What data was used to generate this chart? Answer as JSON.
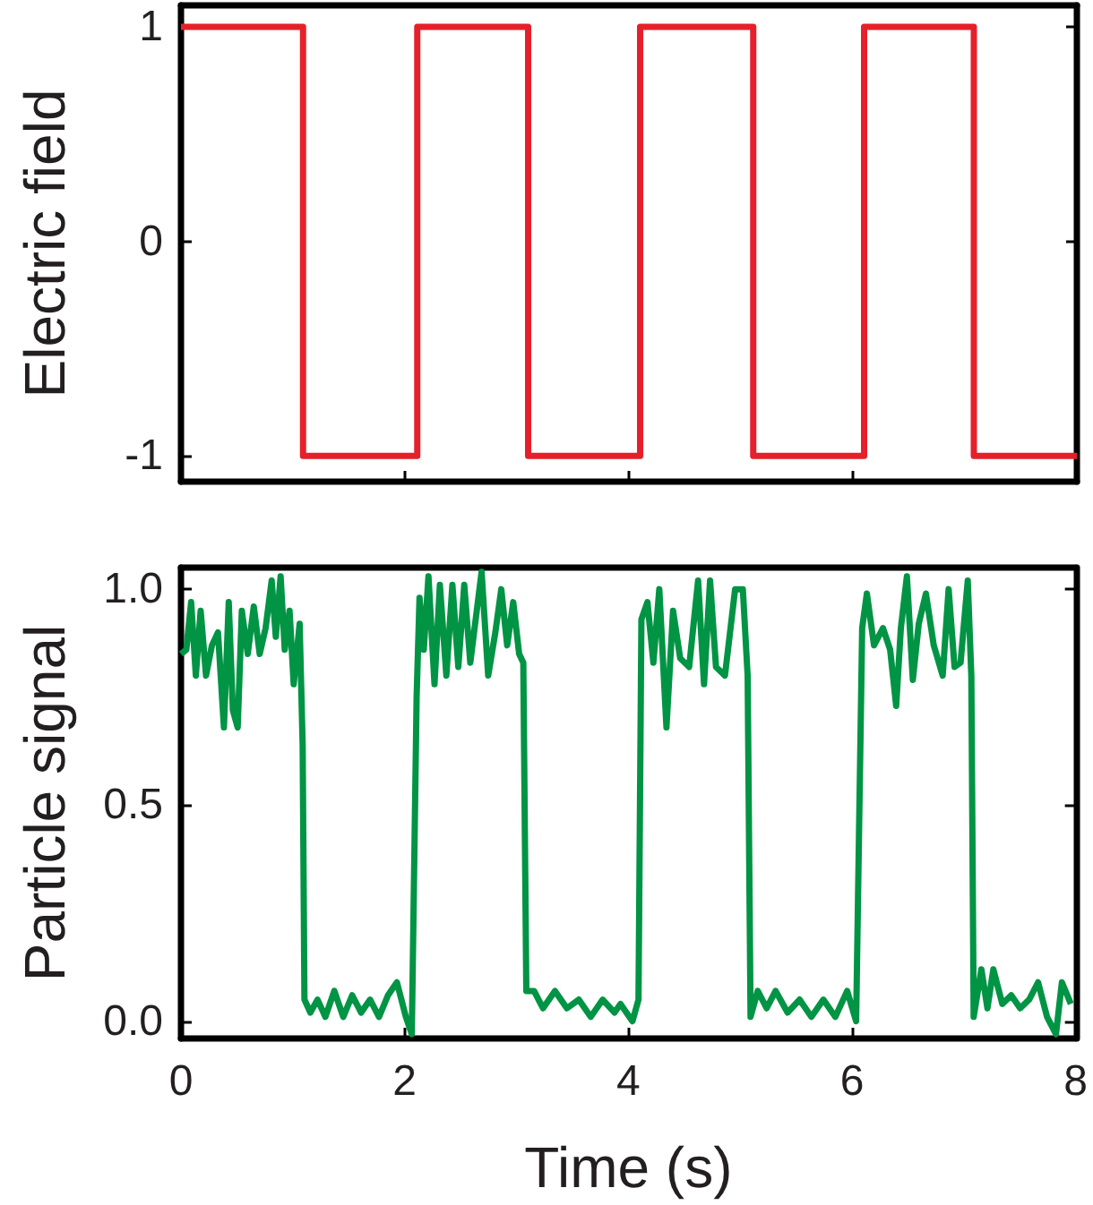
{
  "chart_data": [
    {
      "type": "step",
      "ylabel": "Electric field",
      "color": "#e5202a",
      "marker": "none",
      "tick_labels": "y",
      "x": [
        0,
        1.09,
        2.11,
        3.1,
        4.1,
        5.11,
        6.1,
        7.08,
        8
      ],
      "values": [
        1,
        -1,
        1,
        -1,
        1,
        -1,
        1,
        -1,
        -1
      ],
      "xlim": [
        0,
        8
      ],
      "xticks": [
        0,
        2,
        4,
        6,
        8
      ],
      "ylim": [
        -1.12,
        1.1
      ],
      "yticks": [
        -1,
        0,
        1
      ]
    },
    {
      "type": "line",
      "ylabel": "Particle signal",
      "xlabel": "Time (s)",
      "color": "#009444",
      "marker": "none",
      "x": [
        0,
        0.048,
        0.091,
        0.133,
        0.176,
        0.224,
        0.277,
        0.331,
        0.384,
        0.427,
        0.464,
        0.507,
        0.544,
        0.597,
        0.651,
        0.704,
        0.757,
        0.811,
        0.848,
        0.891,
        0.928,
        0.971,
        1.008,
        1.061,
        1.088,
        1.104,
        1.157,
        1.221,
        1.291,
        1.371,
        1.451,
        1.531,
        1.611,
        1.691,
        1.771,
        1.851,
        1.931,
        2.011,
        2.064,
        2.107,
        2.133,
        2.171,
        2.213,
        2.267,
        2.315,
        2.373,
        2.427,
        2.48,
        2.533,
        2.587,
        2.688,
        2.747,
        2.811,
        2.864,
        2.917,
        2.971,
        3.024,
        3.061,
        3.088,
        3.157,
        3.237,
        3.344,
        3.451,
        3.557,
        3.664,
        3.771,
        3.877,
        3.93,
        4.037,
        4.091,
        4.117,
        4.171,
        4.224,
        4.277,
        4.341,
        4.4,
        4.464,
        4.544,
        4.624,
        4.677,
        4.731,
        4.784,
        4.864,
        4.955,
        5.024,
        5.067,
        5.093,
        5.157,
        5.237,
        5.317,
        5.424,
        5.531,
        5.637,
        5.744,
        5.851,
        5.957,
        6.037,
        6.091,
        6.133,
        6.197,
        6.277,
        6.341,
        6.395,
        6.437,
        6.491,
        6.544,
        6.597,
        6.661,
        6.731,
        6.811,
        6.864,
        6.917,
        6.971,
        7.035,
        7.067,
        7.088,
        7.157,
        7.211,
        7.264,
        7.344,
        7.424,
        7.504,
        7.584,
        7.664,
        7.744,
        7.824,
        7.877,
        7.957
      ],
      "values": [
        0.85,
        0.86,
        0.97,
        0.8,
        0.95,
        0.8,
        0.87,
        0.9,
        0.68,
        0.97,
        0.72,
        0.68,
        0.95,
        0.85,
        0.96,
        0.85,
        0.91,
        1.02,
        0.89,
        1.03,
        0.86,
        0.95,
        0.78,
        0.92,
        0.64,
        0.05,
        0.02,
        0.05,
        0.01,
        0.07,
        0.01,
        0.06,
        0.02,
        0.05,
        0.01,
        0.06,
        0.09,
        0.01,
        -0.03,
        0.75,
        0.98,
        0.86,
        1.03,
        0.78,
        1.01,
        0.8,
        1.01,
        0.82,
        1.01,
        0.83,
        1.04,
        0.8,
        0.9,
        1.0,
        0.87,
        0.97,
        0.85,
        0.83,
        0.07,
        0.07,
        0.03,
        0.07,
        0.03,
        0.05,
        0.01,
        0.05,
        0.02,
        0.04,
        0.0,
        0.05,
        0.93,
        0.97,
        0.83,
        1.0,
        0.68,
        0.95,
        0.84,
        0.82,
        1.02,
        0.78,
        1.02,
        0.82,
        0.8,
        1.0,
        1.0,
        0.8,
        0.01,
        0.07,
        0.03,
        0.07,
        0.02,
        0.05,
        0.01,
        0.05,
        0.01,
        0.07,
        0.0,
        0.91,
        0.99,
        0.87,
        0.91,
        0.86,
        0.73,
        0.91,
        1.03,
        0.79,
        0.92,
        0.99,
        0.87,
        0.8,
        1.0,
        0.82,
        0.83,
        1.02,
        0.8,
        0.01,
        0.12,
        0.03,
        0.12,
        0.04,
        0.06,
        0.03,
        0.05,
        0.09,
        0.01,
        -0.03,
        0.09,
        0.04
      ],
      "xlim": [
        0,
        8
      ],
      "xticks": [
        0,
        2,
        4,
        6,
        8
      ],
      "ylim": [
        -0.04,
        1.05
      ],
      "yticks": [
        {
          "value": 0,
          "label": "0.0"
        },
        0.5,
        {
          "value": 1,
          "label": "1.0"
        }
      ]
    }
  ]
}
